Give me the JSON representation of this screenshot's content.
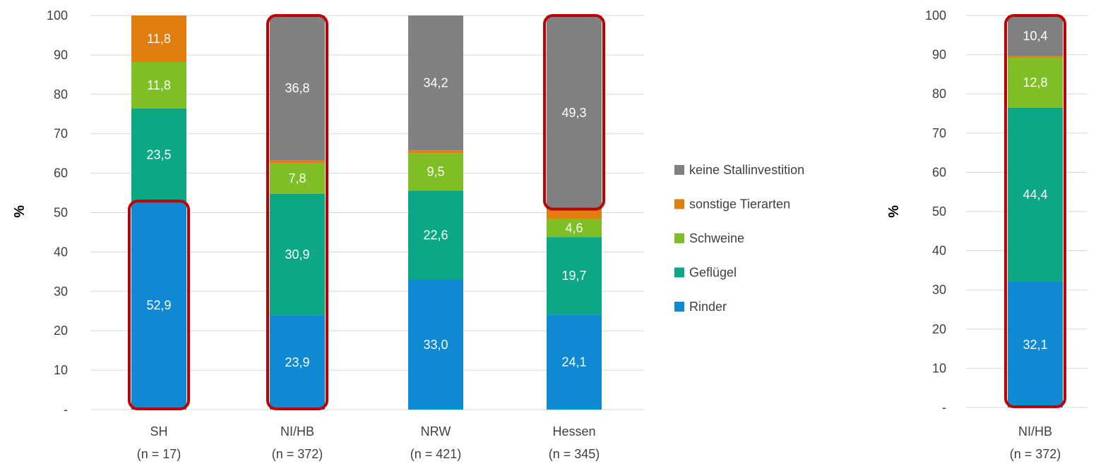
{
  "chart_data": [
    {
      "type": "bar",
      "stacked": true,
      "ylabel": "%",
      "ylim": [
        0,
        100
      ],
      "yticks": [
        "-",
        "10",
        "20",
        "30",
        "40",
        "50",
        "60",
        "70",
        "80",
        "90",
        "100"
      ],
      "grid": true,
      "legend": "right",
      "categories": [
        {
          "label": "SH",
          "sublabel": "(n = 17)"
        },
        {
          "label": "NI/HB",
          "sublabel": "(n = 372)"
        },
        {
          "label": "NRW",
          "sublabel": "(n = 421)"
        },
        {
          "label": "Hessen",
          "sublabel": "(n = 345)"
        }
      ],
      "series": [
        {
          "name": "Rinder",
          "color": "#0e89d2",
          "values": [
            52.9,
            23.9,
            33.0,
            24.1
          ],
          "labels": [
            "52,9",
            "23,9",
            "33,0",
            "24,1"
          ]
        },
        {
          "name": "Geflügel",
          "color": "#0ca784",
          "values": [
            23.5,
            30.9,
            22.6,
            19.7
          ],
          "labels": [
            "23,5",
            "30,9",
            "22,6",
            "19,7"
          ]
        },
        {
          "name": "Schweine",
          "color": "#7fbf26",
          "values": [
            11.8,
            7.8,
            9.5,
            4.6
          ],
          "labels": [
            "11,8",
            "7,8",
            "9,5",
            "4,6"
          ]
        },
        {
          "name": "sonstige Tierarten",
          "color": "#e07e0e",
          "values": [
            11.8,
            0.6,
            0.7,
            2.3
          ],
          "labels": [
            "11,8",
            "",
            "",
            ""
          ]
        },
        {
          "name": "keine Stallinvestition",
          "color": "#808080",
          "values": [
            0.0,
            36.8,
            34.2,
            49.3
          ],
          "labels": [
            "",
            "36,8",
            "34,2",
            "49,3"
          ]
        }
      ],
      "highlights": [
        {
          "category": 0,
          "from": 0,
          "to": 52.9
        },
        {
          "category": 1,
          "from": 0,
          "to": 100
        },
        {
          "category": 3,
          "from": 50.7,
          "to": 100
        }
      ]
    },
    {
      "type": "bar",
      "stacked": true,
      "ylabel": "%",
      "ylim": [
        0,
        100
      ],
      "yticks": [
        "-",
        "10",
        "20",
        "30",
        "40",
        "50",
        "60",
        "70",
        "80",
        "90",
        "100"
      ],
      "grid": true,
      "categories": [
        {
          "label": "NI/HB",
          "sublabel": "(n = 372)"
        }
      ],
      "series": [
        {
          "name": "Rinder",
          "color": "#0e89d2",
          "values": [
            32.1
          ],
          "labels": [
            "32,1"
          ]
        },
        {
          "name": "Geflügel",
          "color": "#0ca784",
          "values": [
            44.4
          ],
          "labels": [
            "44,4"
          ]
        },
        {
          "name": "Schweine",
          "color": "#7fbf26",
          "values": [
            12.8
          ],
          "labels": [
            "12,8"
          ]
        },
        {
          "name": "sonstige Tierarten",
          "color": "#e07e0e",
          "values": [
            0.3
          ],
          "labels": [
            ""
          ]
        },
        {
          "name": "keine Stallinvestition",
          "color": "#808080",
          "values": [
            10.4
          ],
          "labels": [
            "10,4"
          ]
        }
      ],
      "highlights": [
        {
          "category": 0,
          "from": 0,
          "to": 100
        }
      ]
    }
  ],
  "legend": {
    "items": [
      {
        "name": "keine Stallinvestition",
        "color": "#808080"
      },
      {
        "name": "sonstige Tierarten",
        "color": "#e07e0e"
      },
      {
        "name": "Schweine",
        "color": "#7fbf26"
      },
      {
        "name": "Geflügel",
        "color": "#0ca784"
      },
      {
        "name": "Rinder",
        "color": "#0e89d2"
      }
    ]
  },
  "highlight_color": "#c00000"
}
